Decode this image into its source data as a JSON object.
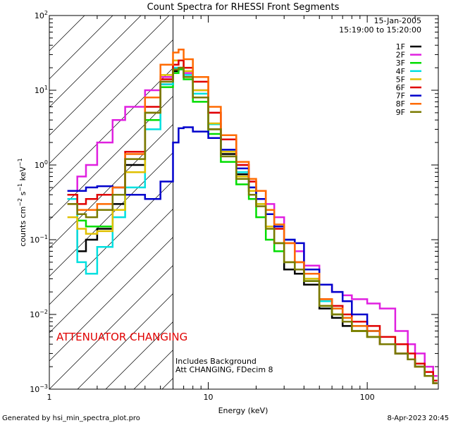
{
  "chart_data": {
    "type": "line",
    "style": "step",
    "title": "Count Spectra for RHESSI Front Segments",
    "xlabel": "Energy (keV)",
    "ylabel_parts": [
      "counts cm",
      "−2",
      " s",
      "−1",
      " keV",
      "−1"
    ],
    "xscale": "log",
    "yscale": "log",
    "xlim": [
      1,
      280
    ],
    "ylim": [
      0.001,
      100
    ],
    "x_tick_labels": [
      "1",
      "10",
      "100"
    ],
    "y_tick_labels": [
      {
        "base": "10",
        "exp": "−3"
      },
      {
        "base": "10",
        "exp": "−2"
      },
      {
        "base": "10",
        "exp": "−1"
      },
      {
        "base": "10",
        "exp": "0"
      },
      {
        "base": "10",
        "exp": "1"
      },
      {
        "base": "10",
        "exp": "2"
      }
    ],
    "date_label": "15-Jan-2005",
    "time_range_label": "15:19:00 to 15:20:00",
    "attenuator_label": "ATTENUATOR CHANGING",
    "attenuator_color": "#e00000",
    "notes": [
      "Includes Background",
      "Att CHANGING, FDecim 8"
    ],
    "hatched_region_keV": [
      1,
      6
    ],
    "divider_line_keV": 6,
    "legend_position": "top-right",
    "series": [
      {
        "name": "1F",
        "color": "#000000",
        "x": [
          1.3,
          1.5,
          1.7,
          2,
          2.5,
          3,
          4,
          5,
          6,
          6.5,
          7,
          8,
          10,
          12,
          15,
          18,
          20,
          23,
          26,
          30,
          35,
          40,
          50,
          60,
          70,
          80,
          100,
          120,
          150,
          180,
          200,
          230,
          260
        ],
        "y": [
          0.4,
          0.07,
          0.1,
          0.14,
          0.3,
          1.0,
          5,
          12,
          18,
          20,
          15,
          8,
          3,
          1.4,
          0.75,
          0.45,
          0.35,
          0.15,
          0.09,
          0.04,
          0.035,
          0.025,
          0.012,
          0.009,
          0.007,
          0.006,
          0.005,
          0.004,
          0.003,
          0.0025,
          0.002,
          0.0015,
          0.0012
        ]
      },
      {
        "name": "2F",
        "color": "#e020e0",
        "x": [
          1.3,
          1.5,
          1.7,
          2,
          2.5,
          3,
          4,
          5,
          6,
          6.5,
          7,
          8,
          10,
          12,
          15,
          18,
          20,
          23,
          26,
          30,
          35,
          40,
          50,
          60,
          70,
          80,
          100,
          120,
          150,
          180,
          200,
          230,
          260
        ],
        "y": [
          0.45,
          0.7,
          1.0,
          2,
          4,
          6,
          10,
          15,
          20,
          20,
          17,
          10,
          5,
          2.2,
          1.0,
          0.6,
          0.45,
          0.3,
          0.2,
          0.1,
          0.07,
          0.045,
          0.025,
          0.02,
          0.018,
          0.016,
          0.014,
          0.012,
          0.006,
          0.004,
          0.003,
          0.002,
          0.0015
        ]
      },
      {
        "name": "3F",
        "color": "#00dd00",
        "x": [
          1.3,
          1.5,
          1.7,
          2,
          2.5,
          3,
          4,
          5,
          6,
          6.5,
          7,
          8,
          10,
          12,
          15,
          18,
          20,
          23,
          26,
          30,
          35,
          40,
          50,
          60,
          70,
          80,
          100,
          120,
          150,
          180,
          200,
          230,
          260
        ],
        "y": [
          0.35,
          0.18,
          0.15,
          0.15,
          0.25,
          0.8,
          4,
          11,
          17,
          19,
          14,
          7,
          2.6,
          1.1,
          0.55,
          0.35,
          0.2,
          0.1,
          0.07,
          0.05,
          0.04,
          0.028,
          0.013,
          0.01,
          0.008,
          0.006,
          0.005,
          0.004,
          0.003,
          0.0025,
          0.002,
          0.0015,
          0.0012
        ]
      },
      {
        "name": "4F",
        "color": "#00e0e0",
        "x": [
          1.3,
          1.5,
          1.7,
          2,
          2.5,
          3,
          4,
          5,
          6,
          6.5,
          7,
          8,
          10,
          12,
          15,
          18,
          20,
          23,
          26,
          30,
          35,
          40,
          50,
          60,
          70,
          80,
          100,
          120,
          150,
          180,
          200,
          230,
          260
        ],
        "y": [
          0.35,
          0.05,
          0.035,
          0.08,
          0.2,
          0.5,
          3,
          12,
          20,
          20,
          16,
          9,
          3.5,
          1.6,
          0.8,
          0.5,
          0.3,
          0.15,
          0.09,
          0.1,
          0.05,
          0.03,
          0.015,
          0.012,
          0.009,
          0.007,
          0.006,
          0.004,
          0.003,
          0.0025,
          0.002,
          0.0015,
          0.0012
        ]
      },
      {
        "name": "5F",
        "color": "#e0c000",
        "x": [
          1.3,
          1.5,
          1.7,
          2,
          2.5,
          3,
          4,
          5,
          6,
          6.5,
          7,
          8,
          10,
          12,
          15,
          18,
          20,
          23,
          26,
          30,
          35,
          40,
          50,
          60,
          70,
          80,
          100,
          120,
          150,
          180,
          200,
          230,
          260
        ],
        "y": [
          0.2,
          0.14,
          0.12,
          0.13,
          0.25,
          0.8,
          5,
          16,
          25,
          25,
          18,
          10,
          3.6,
          1.5,
          0.7,
          0.45,
          0.3,
          0.15,
          0.09,
          0.05,
          0.04,
          0.03,
          0.013,
          0.01,
          0.008,
          0.006,
          0.005,
          0.004,
          0.003,
          0.0025,
          0.002,
          0.0015,
          0.0012
        ]
      },
      {
        "name": "6F",
        "color": "#e00000",
        "x": [
          1.3,
          1.5,
          1.7,
          2,
          2.5,
          3,
          4,
          5,
          6,
          6.5,
          7,
          8,
          10,
          12,
          15,
          18,
          20,
          23,
          26,
          30,
          35,
          40,
          50,
          60,
          70,
          80,
          100,
          120,
          150,
          180,
          200,
          230,
          260
        ],
        "y": [
          0.4,
          0.3,
          0.35,
          0.4,
          0.5,
          1.5,
          6,
          14,
          22,
          25,
          20,
          13,
          5,
          2.2,
          1.0,
          0.6,
          0.45,
          0.22,
          0.14,
          0.09,
          0.05,
          0.035,
          0.016,
          0.013,
          0.01,
          0.008,
          0.007,
          0.005,
          0.004,
          0.003,
          0.0022,
          0.0017,
          0.0013
        ]
      },
      {
        "name": "7F",
        "color": "#0000cc",
        "x": [
          1.3,
          1.5,
          1.7,
          2,
          2.5,
          3,
          4,
          5,
          6,
          6.5,
          7,
          8,
          10,
          12,
          15,
          18,
          20,
          23,
          26,
          30,
          35,
          40,
          50,
          60,
          70,
          80,
          100,
          120,
          150,
          180,
          200,
          230,
          260
        ],
        "y": [
          0.45,
          0.45,
          0.5,
          0.52,
          0.5,
          0.4,
          0.35,
          0.6,
          2,
          3.1,
          3.2,
          2.8,
          2.3,
          1.6,
          0.9,
          0.5,
          0.35,
          0.22,
          0.15,
          0.1,
          0.09,
          0.04,
          0.025,
          0.02,
          0.015,
          0.01,
          0.006,
          0.004,
          0.003,
          0.0025,
          0.002,
          0.0015,
          0.0012
        ]
      },
      {
        "name": "8F",
        "color": "#ff6a00",
        "x": [
          1.3,
          1.5,
          1.7,
          2,
          2.5,
          3,
          4,
          5,
          6,
          6.5,
          7,
          8,
          10,
          12,
          15,
          18,
          20,
          23,
          26,
          30,
          35,
          40,
          50,
          60,
          70,
          80,
          100,
          120,
          150,
          180,
          200,
          230,
          260
        ],
        "y": [
          0.3,
          0.25,
          0.25,
          0.3,
          0.5,
          1.4,
          8,
          22,
          32,
          35,
          26,
          15,
          6,
          2.5,
          1.1,
          0.65,
          0.45,
          0.25,
          0.16,
          0.09,
          0.05,
          0.035,
          0.016,
          0.012,
          0.009,
          0.007,
          0.006,
          0.004,
          0.003,
          0.0025,
          0.002,
          0.0015,
          0.0012
        ]
      },
      {
        "name": "9F",
        "color": "#7a7a00",
        "x": [
          1.3,
          1.5,
          1.7,
          2,
          2.5,
          3,
          4,
          5,
          6,
          6.5,
          7,
          8,
          10,
          12,
          15,
          18,
          20,
          23,
          26,
          30,
          35,
          40,
          50,
          60,
          70,
          80,
          100,
          120,
          150,
          180,
          200,
          230,
          260
        ],
        "y": [
          0.3,
          0.22,
          0.2,
          0.25,
          0.4,
          1.2,
          5,
          13,
          19,
          20,
          15,
          8,
          3,
          1.3,
          0.65,
          0.4,
          0.28,
          0.14,
          0.09,
          0.05,
          0.04,
          0.028,
          0.013,
          0.01,
          0.008,
          0.006,
          0.005,
          0.004,
          0.003,
          0.0025,
          0.002,
          0.0015,
          0.0012
        ]
      }
    ]
  },
  "footer": {
    "generated_by": "Generated by hsi_min_spectra_plot.pro",
    "timestamp": "8-Apr-2023 20:45"
  }
}
